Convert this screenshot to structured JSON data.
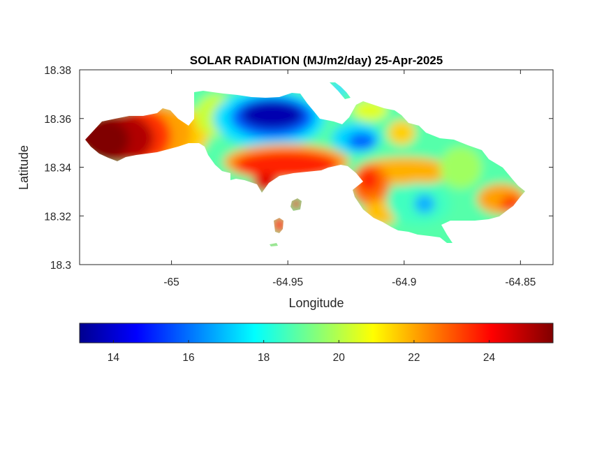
{
  "chart_data": {
    "type": "heatmap",
    "title": "SOLAR RADIATION (MJ/m2/day) 25-Apr-2025",
    "xlabel": "Longitude",
    "ylabel": "Latitude",
    "xlim": [
      -65.0395,
      -64.836
    ],
    "ylim": [
      18.3,
      18.38
    ],
    "xticks": [
      -65,
      -64.95,
      -64.9,
      -64.85
    ],
    "xtick_labels": [
      "-65",
      "-64.95",
      "-64.9",
      "-64.85"
    ],
    "yticks": [
      18.3,
      18.32,
      18.34,
      18.36,
      18.38
    ],
    "ytick_labels": [
      "18.3",
      "18.32",
      "18.34",
      "18.36",
      "18.38"
    ],
    "colormap": "jet",
    "colorbar": {
      "orientation": "horizontal",
      "location": "bottom",
      "range": [
        13.1,
        25.7
      ],
      "ticks": [
        14,
        16,
        18,
        20,
        22,
        24
      ],
      "tick_labels": [
        "14",
        "16",
        "18",
        "20",
        "22",
        "24"
      ]
    },
    "grid": false,
    "values_sampled": [
      {
        "lon": -65.03,
        "lat": 18.35,
        "value": 25.5
      },
      {
        "lon": -65.02,
        "lat": 18.345,
        "value": 25.3
      },
      {
        "lon": -65.005,
        "lat": 18.352,
        "value": 23.5
      },
      {
        "lon": -64.995,
        "lat": 18.355,
        "value": 22.2
      },
      {
        "lon": -64.985,
        "lat": 18.358,
        "value": 20.5
      },
      {
        "lon": -64.975,
        "lat": 18.355,
        "value": 18.0
      },
      {
        "lon": -64.965,
        "lat": 18.36,
        "value": 14.0
      },
      {
        "lon": -64.955,
        "lat": 18.362,
        "value": 14.5
      },
      {
        "lon": -64.945,
        "lat": 18.362,
        "value": 14.0
      },
      {
        "lon": -64.96,
        "lat": 18.34,
        "value": 24.5
      },
      {
        "lon": -64.945,
        "lat": 18.34,
        "value": 24.8
      },
      {
        "lon": -64.935,
        "lat": 18.342,
        "value": 23.5
      },
      {
        "lon": -64.925,
        "lat": 18.352,
        "value": 19.5
      },
      {
        "lon": -64.912,
        "lat": 18.35,
        "value": 16.5
      },
      {
        "lon": -64.9,
        "lat": 18.345,
        "value": 20.5
      },
      {
        "lon": -64.915,
        "lat": 18.335,
        "value": 23.5
      },
      {
        "lon": -64.905,
        "lat": 18.33,
        "value": 22.5
      },
      {
        "lon": -64.89,
        "lat": 18.325,
        "value": 17.5
      },
      {
        "lon": -64.88,
        "lat": 18.335,
        "value": 20.0
      },
      {
        "lon": -64.87,
        "lat": 18.33,
        "value": 22.0
      },
      {
        "lon": -64.86,
        "lat": 18.325,
        "value": 23.5
      },
      {
        "lon": -64.95,
        "lat": 18.323,
        "value": 24.5
      },
      {
        "lon": -64.955,
        "lat": 18.315,
        "value": 24.5
      }
    ]
  },
  "colors": {
    "axes_border": "#262626",
    "jet_stops": [
      "#00008f",
      "#0000ff",
      "#00ffff",
      "#ffff00",
      "#ff0000",
      "#800000"
    ]
  }
}
